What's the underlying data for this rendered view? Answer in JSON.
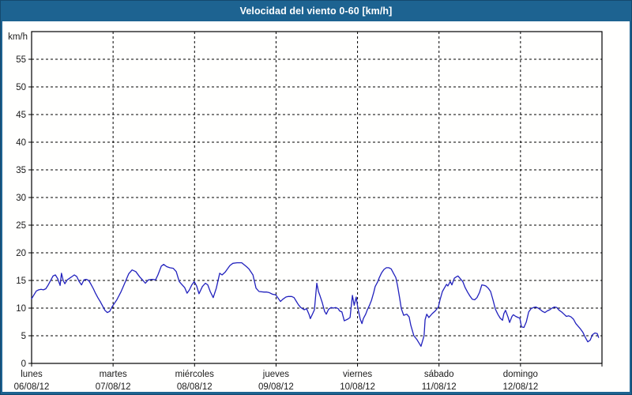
{
  "window": {
    "title": "Velocidad del viento 0-60 [km/h]",
    "titlebar_color": "#1d6391",
    "border_color": "#1d6391"
  },
  "chart_data": {
    "type": "line",
    "title": "Velocidad del viento 0-60 [km/h]",
    "ylabel": "km/h",
    "xlabel": "",
    "ylim": [
      0,
      60
    ],
    "yticks": [
      0,
      5,
      10,
      15,
      20,
      25,
      30,
      35,
      40,
      45,
      50,
      55
    ],
    "xlim_hours": [
      0,
      168
    ],
    "grid": "dashed-black",
    "legend_position": "none",
    "plot_bg": "#ffffff",
    "frame_color": "#000000",
    "x_day_ticks": [
      {
        "hour": 0,
        "label": "lunes",
        "date": "06/08/12"
      },
      {
        "hour": 24,
        "label": "martes",
        "date": "07/08/12"
      },
      {
        "hour": 48,
        "label": "miércoles",
        "date": "08/08/12"
      },
      {
        "hour": 72,
        "label": "jueves",
        "date": "09/08/12"
      },
      {
        "hour": 96,
        "label": "viernes",
        "date": "10/08/12"
      },
      {
        "hour": 120,
        "label": "sábado",
        "date": "11/08/12"
      },
      {
        "hour": 144,
        "label": "domingo",
        "date": "12/08/12"
      }
    ],
    "series": [
      {
        "name": "Velocidad del viento",
        "unit": "km/h",
        "color": "#2121bd",
        "points_format": [
          "hours_since_lunes_00",
          "km/h"
        ],
        "points": [
          [
            0,
            11.7
          ],
          [
            0.7,
            12.4
          ],
          [
            1.4,
            13.1
          ],
          [
            2.1,
            13.3
          ],
          [
            2.8,
            13.4
          ],
          [
            3.5,
            13.3
          ],
          [
            4.2,
            13.5
          ],
          [
            4.9,
            14.2
          ],
          [
            5.6,
            15.0
          ],
          [
            6.3,
            15.8
          ],
          [
            7.0,
            16.0
          ],
          [
            7.7,
            15.3
          ],
          [
            8.4,
            14.1
          ],
          [
            8.8,
            16.3
          ],
          [
            9.3,
            15.0
          ],
          [
            9.8,
            14.4
          ],
          [
            10.5,
            15.1
          ],
          [
            11.2,
            15.4
          ],
          [
            11.9,
            15.7
          ],
          [
            12.6,
            16.0
          ],
          [
            13.3,
            15.7
          ],
          [
            14.0,
            14.8
          ],
          [
            14.7,
            14.2
          ],
          [
            15.4,
            15.1
          ],
          [
            16.1,
            15.2
          ],
          [
            16.8,
            15.0
          ],
          [
            17.5,
            14.3
          ],
          [
            18.2,
            13.5
          ],
          [
            18.8,
            12.7
          ],
          [
            19.5,
            11.9
          ],
          [
            20.2,
            11.2
          ],
          [
            20.9,
            10.4
          ],
          [
            21.6,
            9.6
          ],
          [
            22.3,
            9.2
          ],
          [
            23.0,
            9.4
          ],
          [
            23.5,
            10.0
          ],
          [
            24.0,
            10.5
          ],
          [
            25.1,
            11.5
          ],
          [
            26.3,
            12.9
          ],
          [
            27.5,
            14.6
          ],
          [
            28.6,
            16.2
          ],
          [
            29.6,
            16.9
          ],
          [
            30.7,
            16.6
          ],
          [
            31.9,
            15.6
          ],
          [
            32.8,
            15.0
          ],
          [
            33.5,
            14.5
          ],
          [
            34.4,
            15.1
          ],
          [
            35.6,
            15.2
          ],
          [
            36.5,
            15.1
          ],
          [
            37.2,
            16.0
          ],
          [
            38.2,
            17.6
          ],
          [
            38.9,
            17.9
          ],
          [
            39.8,
            17.5
          ],
          [
            40.7,
            17.3
          ],
          [
            41.7,
            17.2
          ],
          [
            42.6,
            16.6
          ],
          [
            43.5,
            14.8
          ],
          [
            44.2,
            14.3
          ],
          [
            45.1,
            13.7
          ],
          [
            45.8,
            12.7
          ],
          [
            46.5,
            13.3
          ],
          [
            47.2,
            14.2
          ],
          [
            47.9,
            14.8
          ],
          [
            48.6,
            14.0
          ],
          [
            49.3,
            12.6
          ],
          [
            50.3,
            13.9
          ],
          [
            51.2,
            14.5
          ],
          [
            51.9,
            14.2
          ],
          [
            52.6,
            13.0
          ],
          [
            53.5,
            11.9
          ],
          [
            54.4,
            13.6
          ],
          [
            55.4,
            16.3
          ],
          [
            56.1,
            16.0
          ],
          [
            57.0,
            16.5
          ],
          [
            58.4,
            17.7
          ],
          [
            59.3,
            18.1
          ],
          [
            60.5,
            18.2
          ],
          [
            61.9,
            18.2
          ],
          [
            63.3,
            17.5
          ],
          [
            64.0,
            17.1
          ],
          [
            65.2,
            16.0
          ],
          [
            66.1,
            13.6
          ],
          [
            67.0,
            13.0
          ],
          [
            68.4,
            12.9
          ],
          [
            69.3,
            12.9
          ],
          [
            70.0,
            12.8
          ],
          [
            71.0,
            12.5
          ],
          [
            71.9,
            12.4
          ],
          [
            72.6,
            11.8
          ],
          [
            73.3,
            11.2
          ],
          [
            74.0,
            11.6
          ],
          [
            74.9,
            12.0
          ],
          [
            75.6,
            12.1
          ],
          [
            76.6,
            12.1
          ],
          [
            77.3,
            11.9
          ],
          [
            78.0,
            11.2
          ],
          [
            78.6,
            10.6
          ],
          [
            79.3,
            10.1
          ],
          [
            80.3,
            9.7
          ],
          [
            81.0,
            9.9
          ],
          [
            81.7,
            8.9
          ],
          [
            82.1,
            8.1
          ],
          [
            82.8,
            9.0
          ],
          [
            83.3,
            9.7
          ],
          [
            84.0,
            14.5
          ],
          [
            84.5,
            13.0
          ],
          [
            84.9,
            12.3
          ],
          [
            85.6,
            11.0
          ],
          [
            86.3,
            9.4
          ],
          [
            86.8,
            8.9
          ],
          [
            87.5,
            9.8
          ],
          [
            88.2,
            10.1
          ],
          [
            88.9,
            10.0
          ],
          [
            89.6,
            10.1
          ],
          [
            90.3,
            9.9
          ],
          [
            90.7,
            9.5
          ],
          [
            91.4,
            9.3
          ],
          [
            92.1,
            7.7
          ],
          [
            93.1,
            8.0
          ],
          [
            93.8,
            8.3
          ],
          [
            94.5,
            12.3
          ],
          [
            95.0,
            10.5
          ],
          [
            95.6,
            12.0
          ],
          [
            96.1,
            10.0
          ],
          [
            96.8,
            8.0
          ],
          [
            97.3,
            7.2
          ],
          [
            97.7,
            8.1
          ],
          [
            98.4,
            8.9
          ],
          [
            98.9,
            9.7
          ],
          [
            99.6,
            10.6
          ],
          [
            100.1,
            11.4
          ],
          [
            100.8,
            12.9
          ],
          [
            101.2,
            13.9
          ],
          [
            101.9,
            14.7
          ],
          [
            102.4,
            15.5
          ],
          [
            103.1,
            16.4
          ],
          [
            103.8,
            17.0
          ],
          [
            104.5,
            17.3
          ],
          [
            105.2,
            17.3
          ],
          [
            105.9,
            17.1
          ],
          [
            106.6,
            16.3
          ],
          [
            107.3,
            15.5
          ],
          [
            107.8,
            14.0
          ],
          [
            108.4,
            11.8
          ],
          [
            108.9,
            9.9
          ],
          [
            109.6,
            8.7
          ],
          [
            110.5,
            8.9
          ],
          [
            111.2,
            8.4
          ],
          [
            111.7,
            6.9
          ],
          [
            112.6,
            5.0
          ],
          [
            113.5,
            4.3
          ],
          [
            114.7,
            3.1
          ],
          [
            115.6,
            5.0
          ],
          [
            115.9,
            7.9
          ],
          [
            116.4,
            8.9
          ],
          [
            117.0,
            8.3
          ],
          [
            118.0,
            9.0
          ],
          [
            118.9,
            9.5
          ],
          [
            119.8,
            10.2
          ],
          [
            120.3,
            11.5
          ],
          [
            121.0,
            13.0
          ],
          [
            122.2,
            14.3
          ],
          [
            122.6,
            14.0
          ],
          [
            123.3,
            14.8
          ],
          [
            123.8,
            14.2
          ],
          [
            124.5,
            15.4
          ],
          [
            125.2,
            15.7
          ],
          [
            125.6,
            15.8
          ],
          [
            126.3,
            15.3
          ],
          [
            127.0,
            14.8
          ],
          [
            127.7,
            13.7
          ],
          [
            128.4,
            12.9
          ],
          [
            129.1,
            12.2
          ],
          [
            129.8,
            11.6
          ],
          [
            130.5,
            11.5
          ],
          [
            131.2,
            11.9
          ],
          [
            131.9,
            12.8
          ],
          [
            132.6,
            14.2
          ],
          [
            133.3,
            14.1
          ],
          [
            133.8,
            14.0
          ],
          [
            134.5,
            13.6
          ],
          [
            135.2,
            13.0
          ],
          [
            135.9,
            11.5
          ],
          [
            136.6,
            9.8
          ],
          [
            137.3,
            8.9
          ],
          [
            138.0,
            8.2
          ],
          [
            138.7,
            7.8
          ],
          [
            139.1,
            9.0
          ],
          [
            139.6,
            9.6
          ],
          [
            140.3,
            8.4
          ],
          [
            140.8,
            7.4
          ],
          [
            141.5,
            8.5
          ],
          [
            141.9,
            8.8
          ],
          [
            142.6,
            8.5
          ],
          [
            143.3,
            8.3
          ],
          [
            143.8,
            8.2
          ],
          [
            144.3,
            6.6
          ],
          [
            145.0,
            6.5
          ],
          [
            145.7,
            7.5
          ],
          [
            146.4,
            9.3
          ],
          [
            147.1,
            9.9
          ],
          [
            147.8,
            10.1
          ],
          [
            148.5,
            10.2
          ],
          [
            149.2,
            10.0
          ],
          [
            149.9,
            9.7
          ],
          [
            150.5,
            9.4
          ],
          [
            151.2,
            9.2
          ],
          [
            151.9,
            9.5
          ],
          [
            152.6,
            9.7
          ],
          [
            153.3,
            10.0
          ],
          [
            154.0,
            10.2
          ],
          [
            154.7,
            10.1
          ],
          [
            155.4,
            9.6
          ],
          [
            156.1,
            9.3
          ],
          [
            156.8,
            8.9
          ],
          [
            157.5,
            8.5
          ],
          [
            158.2,
            8.6
          ],
          [
            158.9,
            8.4
          ],
          [
            159.6,
            8.0
          ],
          [
            160.3,
            7.2
          ],
          [
            161.0,
            6.7
          ],
          [
            161.7,
            6.2
          ],
          [
            162.4,
            5.6
          ],
          [
            163.1,
            4.7
          ],
          [
            163.8,
            3.9
          ],
          [
            164.5,
            4.2
          ],
          [
            165.2,
            5.2
          ],
          [
            165.9,
            5.5
          ],
          [
            166.6,
            5.4
          ],
          [
            167.0,
            4.7
          ]
        ]
      }
    ]
  }
}
